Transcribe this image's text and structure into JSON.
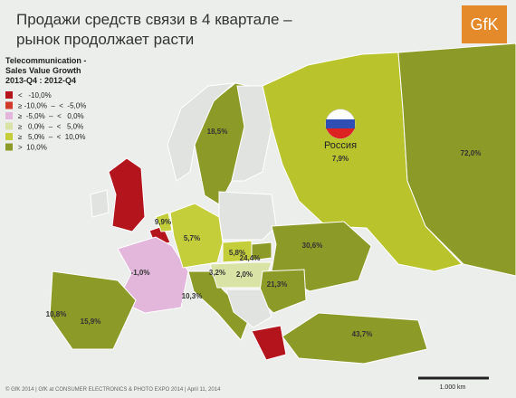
{
  "header": {
    "title": "Продажи средств связи в 4 квартале – рынок продолжает расти",
    "logo": "GfK"
  },
  "legend": {
    "title": [
      "Telecommunication -",
      "Sales Value Growth",
      "2013-Q4 : 2012-Q4"
    ],
    "items": [
      {
        "label": "<   -10,0%",
        "color": "#b4151d"
      },
      {
        "label": "≥ -10,0%  –  <  -5,0%",
        "color": "#cf3a2a"
      },
      {
        "label": "≥  -5,0%  –  <   0,0%",
        "color": "#e3b6dc"
      },
      {
        "label": "≥   0,0%  –  <   5,0%",
        "color": "#d9e3a6"
      },
      {
        "label": "≥   5,0%  –  <  10,0%",
        "color": "#c3ce3a"
      },
      {
        "label": ">  10,0%",
        "color": "#8c9a28"
      }
    ]
  },
  "regions": [
    {
      "name": "Россия",
      "label": "7,9%"
    },
    {
      "label": "72,0%"
    },
    {
      "label": "18,5%"
    },
    {
      "label": "9,9%"
    },
    {
      "label": "5,7%"
    },
    {
      "label": "5,8%"
    },
    {
      "label": "-1,0%"
    },
    {
      "label": "24,4%"
    },
    {
      "label": "30,6%"
    },
    {
      "label": "3,2%"
    },
    {
      "label": "2,0%"
    },
    {
      "label": "21,3%"
    },
    {
      "label": "10,3%"
    },
    {
      "label": "10,8%"
    },
    {
      "label": "15,9%"
    },
    {
      "label": "43,7%"
    }
  ],
  "scale": "1.000 km",
  "footer": "© GfK 2014 | GfK at CONSUMER ELECTRONICS & PHOTO EXPO 2014 | April 11, 2014"
}
